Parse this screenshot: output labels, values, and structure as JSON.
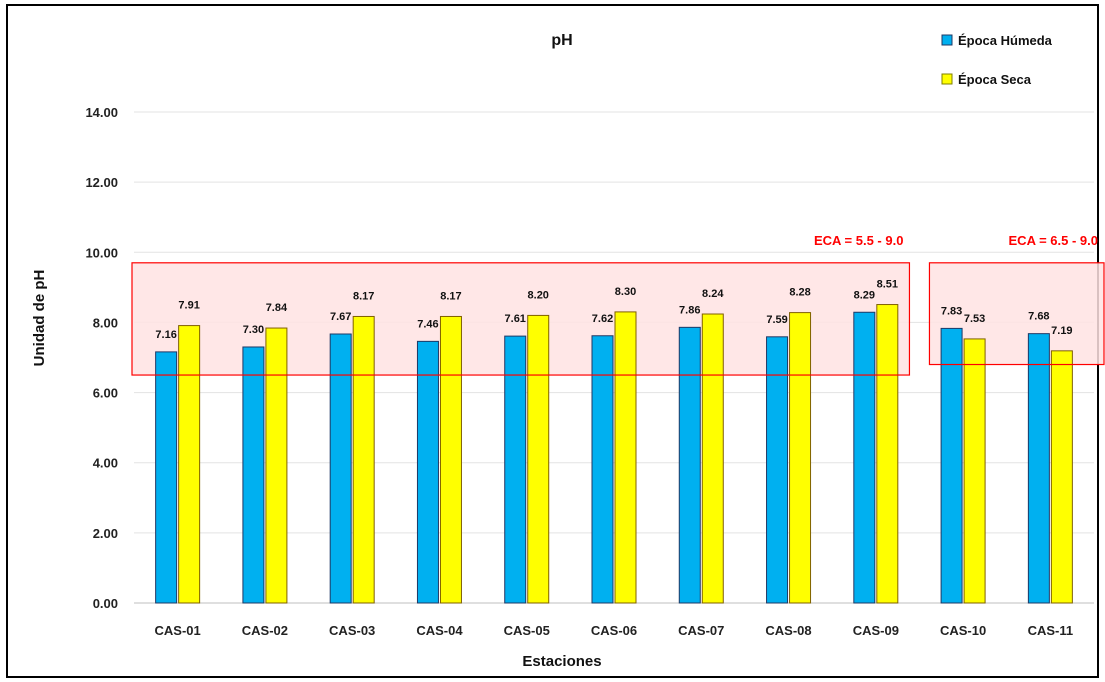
{
  "chart_data": {
    "type": "bar",
    "title": "pH",
    "xlabel": "Estaciones",
    "ylabel": "Unidad de pH",
    "ylim": [
      0,
      14
    ],
    "yticks": [
      "0.00",
      "2.00",
      "4.00",
      "6.00",
      "8.00",
      "10.00",
      "12.00",
      "14.00"
    ],
    "ytick_values": [
      0,
      2,
      4,
      6,
      8,
      10,
      12,
      14
    ],
    "grid": true,
    "legend_position": "top-right",
    "categories": [
      "CAS-01",
      "CAS-02",
      "CAS-03",
      "CAS-04",
      "CAS-05",
      "CAS-06",
      "CAS-07",
      "CAS-08",
      "CAS-09",
      "CAS-10",
      "CAS-11"
    ],
    "series": [
      {
        "name": "Época Húmeda",
        "color": "#00b0f0",
        "values": [
          7.16,
          7.3,
          7.67,
          7.46,
          7.61,
          7.62,
          7.86,
          7.59,
          8.29,
          7.83,
          7.68
        ],
        "labels": [
          "7.16",
          "7.30",
          "7.67",
          "7.46",
          "7.61",
          "7.62",
          "7.86",
          "7.59",
          "8.29",
          "7.83",
          "7.68"
        ]
      },
      {
        "name": "Época Seca",
        "color": "#ffff00",
        "values": [
          7.91,
          7.84,
          8.17,
          8.17,
          8.2,
          8.3,
          8.24,
          8.28,
          8.51,
          7.53,
          7.19
        ],
        "labels": [
          "7.91",
          "7.84",
          "8.17",
          "8.17",
          "8.20",
          "8.30",
          "8.24",
          "8.28",
          "8.51",
          "7.53",
          "7.19"
        ]
      }
    ],
    "annotations": [
      {
        "label": "ECA = 5.5 - 9.0",
        "ymin": 6.5,
        "ymax": 9.7,
        "from_category": 0,
        "to_category": 8,
        "color": "#ff0000"
      },
      {
        "label": "ECA = 6.5 - 9.0",
        "ymin": 6.8,
        "ymax": 9.7,
        "from_category": 9,
        "to_category": 10,
        "color": "#ff0000"
      }
    ]
  }
}
